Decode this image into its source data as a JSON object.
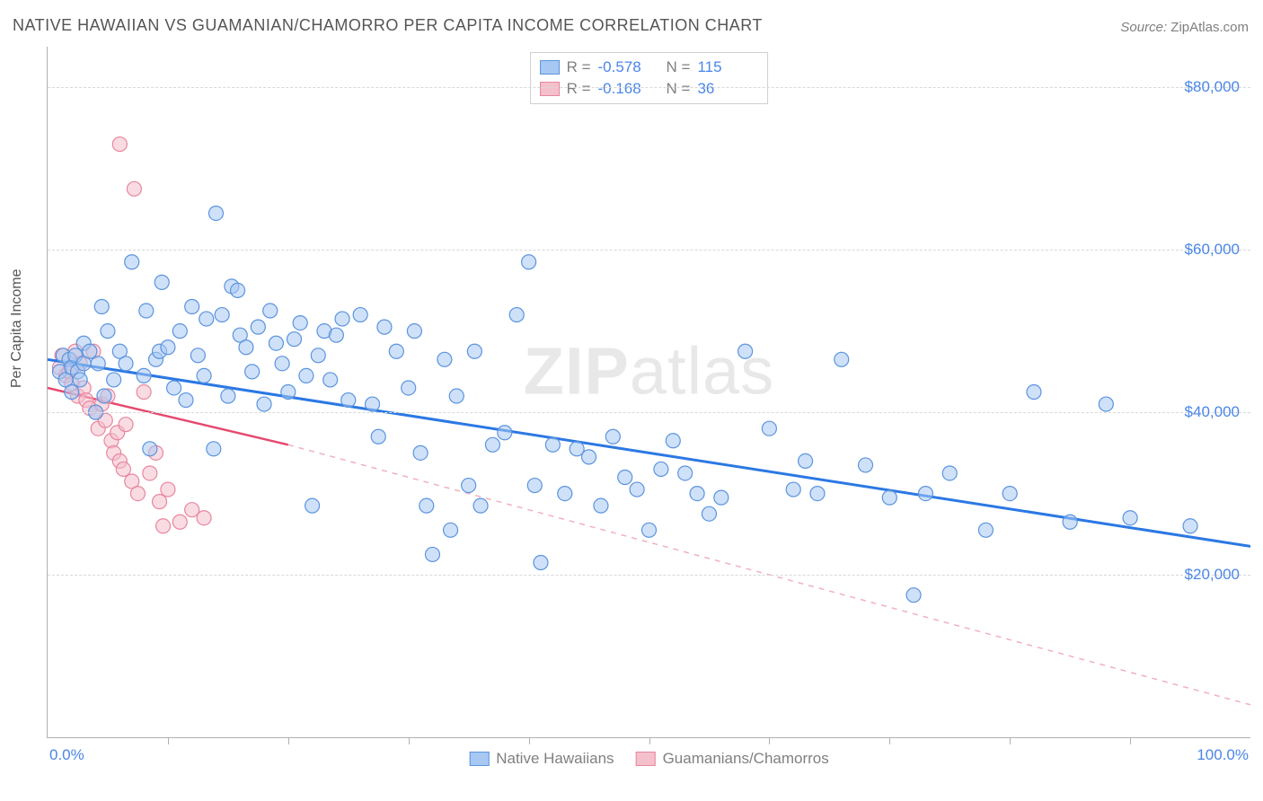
{
  "title": "NATIVE HAWAIIAN VS GUAMANIAN/CHAMORRO PER CAPITA INCOME CORRELATION CHART",
  "source_label": "Source:",
  "source_value": "ZipAtlas.com",
  "y_axis_label": "Per Capita Income",
  "watermark_prefix": "ZIP",
  "watermark_suffix": "atlas",
  "chart": {
    "type": "scatter",
    "xlim": [
      0,
      100
    ],
    "ylim": [
      0,
      85000
    ],
    "x_axis_start_label": "0.0%",
    "x_axis_end_label": "100.0%",
    "x_ticks": [
      0,
      10,
      20,
      30,
      40,
      50,
      60,
      70,
      80,
      90,
      100
    ],
    "y_gridlines": [
      20000,
      40000,
      60000,
      80000
    ],
    "y_tick_labels": [
      "$20,000",
      "$40,000",
      "$60,000",
      "$80,000"
    ],
    "background_color": "#ffffff",
    "grid_color": "#d8d8d8",
    "marker_radius": 8,
    "marker_stroke_width": 1.2,
    "series": [
      {
        "name": "Native Hawaiians",
        "color_fill": "#a7c8f2",
        "color_stroke": "#5b94de",
        "R": "-0.578",
        "N": "115",
        "trend_solid": {
          "x1": 0,
          "y1": 46500,
          "x2": 100,
          "y2": 23500,
          "color": "#2b78e4",
          "width": 3
        },
        "points": [
          [
            1,
            45000
          ],
          [
            1.3,
            47000
          ],
          [
            1.5,
            44000
          ],
          [
            1.8,
            46500
          ],
          [
            2,
            42500
          ],
          [
            2,
            45500
          ],
          [
            2.3,
            47000
          ],
          [
            2.5,
            45000
          ],
          [
            2.7,
            44000
          ],
          [
            3,
            46000
          ],
          [
            3,
            48500
          ],
          [
            3.5,
            47500
          ],
          [
            4,
            40000
          ],
          [
            4.2,
            46000
          ],
          [
            4.5,
            53000
          ],
          [
            4.7,
            42000
          ],
          [
            5,
            50000
          ],
          [
            5.5,
            44000
          ],
          [
            6,
            47500
          ],
          [
            6.5,
            46000
          ],
          [
            7,
            58500
          ],
          [
            8,
            44500
          ],
          [
            8.2,
            52500
          ],
          [
            8.5,
            35500
          ],
          [
            9,
            46500
          ],
          [
            9.3,
            47500
          ],
          [
            9.5,
            56000
          ],
          [
            10,
            48000
          ],
          [
            10.5,
            43000
          ],
          [
            11,
            50000
          ],
          [
            11.5,
            41500
          ],
          [
            12,
            53000
          ],
          [
            12.5,
            47000
          ],
          [
            13,
            44500
          ],
          [
            13.2,
            51500
          ],
          [
            13.8,
            35500
          ],
          [
            14,
            64500
          ],
          [
            14.5,
            52000
          ],
          [
            15,
            42000
          ],
          [
            15.3,
            55500
          ],
          [
            15.8,
            55000
          ],
          [
            16,
            49500
          ],
          [
            16.5,
            48000
          ],
          [
            17,
            45000
          ],
          [
            17.5,
            50500
          ],
          [
            18,
            41000
          ],
          [
            18.5,
            52500
          ],
          [
            19,
            48500
          ],
          [
            19.5,
            46000
          ],
          [
            20,
            42500
          ],
          [
            20.5,
            49000
          ],
          [
            21,
            51000
          ],
          [
            21.5,
            44500
          ],
          [
            22,
            28500
          ],
          [
            22.5,
            47000
          ],
          [
            23,
            50000
          ],
          [
            23.5,
            44000
          ],
          [
            24,
            49500
          ],
          [
            24.5,
            51500
          ],
          [
            25,
            41500
          ],
          [
            26,
            52000
          ],
          [
            27,
            41000
          ],
          [
            27.5,
            37000
          ],
          [
            28,
            50500
          ],
          [
            29,
            47500
          ],
          [
            30,
            43000
          ],
          [
            30.5,
            50000
          ],
          [
            31,
            35000
          ],
          [
            31.5,
            28500
          ],
          [
            32,
            22500
          ],
          [
            33,
            46500
          ],
          [
            33.5,
            25500
          ],
          [
            34,
            42000
          ],
          [
            35,
            31000
          ],
          [
            35.5,
            47500
          ],
          [
            36,
            28500
          ],
          [
            37,
            36000
          ],
          [
            38,
            37500
          ],
          [
            39,
            52000
          ],
          [
            40,
            58500
          ],
          [
            40.5,
            31000
          ],
          [
            41,
            21500
          ],
          [
            42,
            36000
          ],
          [
            43,
            30000
          ],
          [
            44,
            35500
          ],
          [
            45,
            34500
          ],
          [
            46,
            28500
          ],
          [
            47,
            37000
          ],
          [
            48,
            32000
          ],
          [
            49,
            30500
          ],
          [
            50,
            25500
          ],
          [
            51,
            33000
          ],
          [
            52,
            36500
          ],
          [
            53,
            32500
          ],
          [
            54,
            30000
          ],
          [
            55,
            27500
          ],
          [
            56,
            29500
          ],
          [
            58,
            47500
          ],
          [
            60,
            38000
          ],
          [
            62,
            30500
          ],
          [
            63,
            34000
          ],
          [
            64,
            30000
          ],
          [
            66,
            46500
          ],
          [
            68,
            33500
          ],
          [
            70,
            29500
          ],
          [
            72,
            17500
          ],
          [
            73,
            30000
          ],
          [
            75,
            32500
          ],
          [
            78,
            25500
          ],
          [
            80,
            30000
          ],
          [
            82,
            42500
          ],
          [
            85,
            26500
          ],
          [
            88,
            41000
          ],
          [
            90,
            27000
          ],
          [
            95,
            26000
          ]
        ]
      },
      {
        "name": "Guamanians/Chamorros",
        "color_fill": "#f4c0cc",
        "color_stroke": "#e8869f",
        "R": "-0.168",
        "N": "36",
        "trend_solid": {
          "x1": 0,
          "y1": 43000,
          "x2": 20,
          "y2": 36000,
          "color": "#e6496f",
          "width": 2.5
        },
        "trend_dashed": {
          "x1": 20,
          "y1": 36000,
          "x2": 100,
          "y2": 4000,
          "color": "#f0b0c0",
          "width": 1.5
        },
        "points": [
          [
            1,
            45500
          ],
          [
            1.2,
            47000
          ],
          [
            1.5,
            44500
          ],
          [
            1.8,
            45000
          ],
          [
            2,
            43500
          ],
          [
            2.3,
            47500
          ],
          [
            2.5,
            42000
          ],
          [
            2.7,
            46000
          ],
          [
            3,
            43000
          ],
          [
            3.2,
            41500
          ],
          [
            3.5,
            40500
          ],
          [
            3.8,
            47500
          ],
          [
            4,
            40000
          ],
          [
            4.2,
            38000
          ],
          [
            4.5,
            41000
          ],
          [
            4.8,
            39000
          ],
          [
            5,
            42000
          ],
          [
            5.3,
            36500
          ],
          [
            5.5,
            35000
          ],
          [
            5.8,
            37500
          ],
          [
            6,
            34000
          ],
          [
            6,
            73000
          ],
          [
            6.3,
            33000
          ],
          [
            6.5,
            38500
          ],
          [
            7,
            31500
          ],
          [
            7.2,
            67500
          ],
          [
            7.5,
            30000
          ],
          [
            8,
            42500
          ],
          [
            8.5,
            32500
          ],
          [
            9,
            35000
          ],
          [
            9.3,
            29000
          ],
          [
            9.6,
            26000
          ],
          [
            10,
            30500
          ],
          [
            11,
            26500
          ],
          [
            12,
            28000
          ],
          [
            13,
            27000
          ]
        ]
      }
    ]
  },
  "legend_bottom": [
    {
      "label": "Native Hawaiians",
      "fill": "#a7c8f2",
      "stroke": "#5b94de"
    },
    {
      "label": "Guamanians/Chamorros",
      "fill": "#f4c0cc",
      "stroke": "#e8869f"
    }
  ]
}
